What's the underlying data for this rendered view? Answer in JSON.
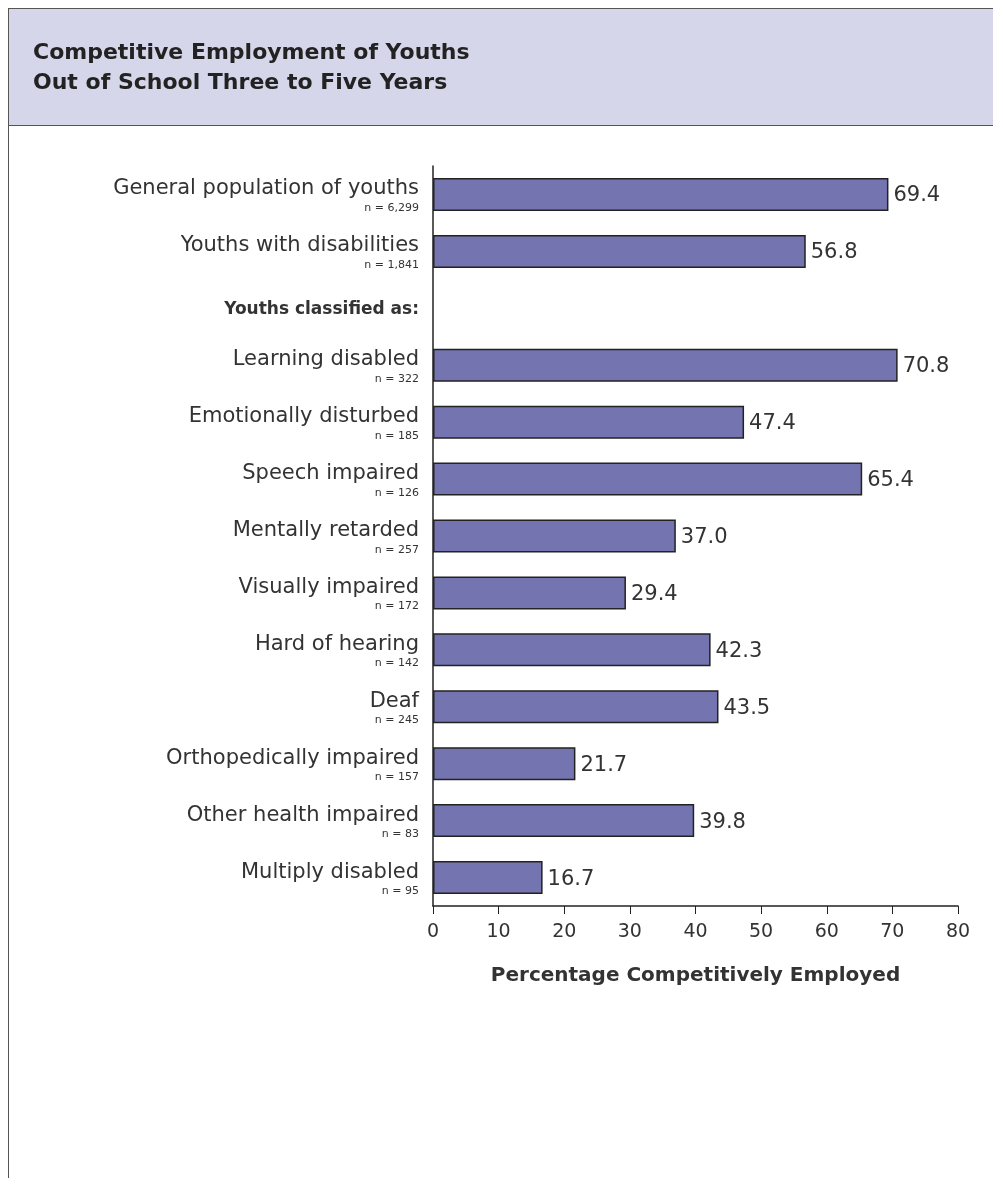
{
  "chart_data": {
    "type": "bar",
    "orientation": "horizontal",
    "title": "Competitive Employment of Youths\nOut of School Three to Five Years",
    "categories": [
      "General population of youths\nn = 6,299",
      "Youths with disabilities\nn = 1,841",
      null,
      "Learning disabled\nn = 322",
      "Emotionally disturbed\nn = 185",
      "Speech impaired\nn = 126",
      "Mentally retarded\nn = 257",
      "Visually impaired\nn = 172",
      "Hard of hearing\nn = 142",
      "Deaf\nn = 245",
      "Orthopedically impaired\nn = 157",
      "Other health impaired\nn = 83",
      "Multiply disabled\nn = 95"
    ],
    "values": [
      69.4,
      56.8,
      null,
      70.8,
      47.4,
      65.4,
      37.0,
      29.4,
      42.3,
      43.5,
      21.7,
      39.8,
      16.7
    ],
    "value_labels": [
      "69.4",
      "56.8",
      null,
      "70.8",
      "47.4",
      "65.4",
      "37.0",
      "29.4",
      "42.3",
      "43.5",
      "21.7",
      "39.8",
      "16.7"
    ],
    "color": "#7474b0",
    "xlabel": "Percentage Competitively Employed",
    "xlim": [
      0,
      80
    ],
    "xticks": [
      0,
      10,
      20,
      30,
      40,
      50,
      60,
      70,
      80
    ],
    "annotations": [
      "Youths classified as:"
    ],
    "grid": false
  }
}
